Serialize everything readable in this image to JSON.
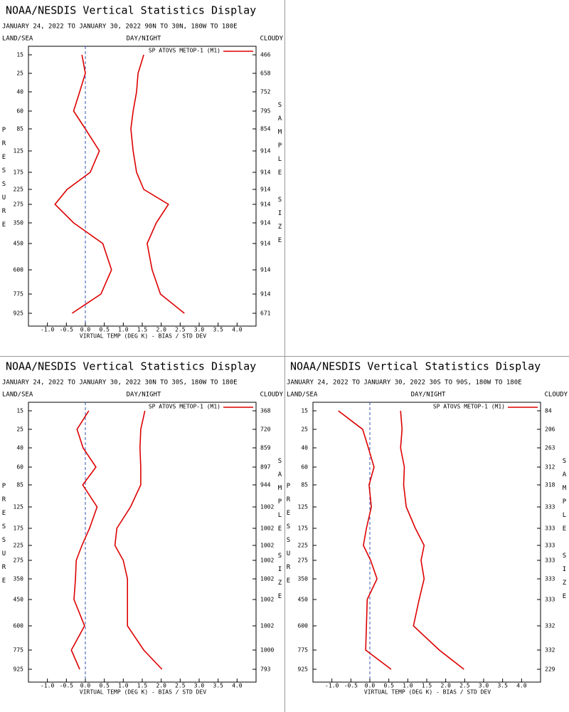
{
  "chart_data": [
    {
      "type": "line",
      "title": "NOAA/NESDIS Vertical Statistics Display",
      "subtitle": "JANUARY 24, 2022 TO JANUARY 30, 2022 90N TO 30N, 180W TO 180E",
      "left_header": "LAND/SEA",
      "center_header": "DAY/NIGHT",
      "right_header": "CLOUDY",
      "y_label": "PRESSURE",
      "y2_label": "SAMPLE SIZE",
      "x_label": "VIRTUAL TEMP (DEG K) - BIAS / STD DEV",
      "legend": "SP ATOVS METOP-1 (M1)",
      "categories": [
        "15",
        "25",
        "40",
        "60",
        "85",
        "125",
        "175",
        "225",
        "275",
        "350",
        "450",
        "600",
        "775",
        "925"
      ],
      "sample_size": [
        "466",
        "658",
        "752",
        "795",
        "854",
        "914",
        "914",
        "914",
        "914",
        "914",
        "914",
        "914",
        "914",
        "671"
      ],
      "series": [
        {
          "color": "#dd0000",
          "values": [
            -0.09,
            0.0,
            -0.15,
            -0.31,
            0.0,
            0.37,
            0.13,
            -0.48,
            -0.8,
            -0.31,
            0.46,
            0.69,
            0.41,
            -0.35
          ]
        },
        {
          "color": "#dd0000",
          "values": [
            1.54,
            1.39,
            1.35,
            1.26,
            1.2,
            1.26,
            1.35,
            1.54,
            2.19,
            1.87,
            1.63,
            1.76,
            1.98,
            2.61
          ]
        }
      ],
      "xlim": [
        -1.5,
        4.5
      ],
      "xticks": [
        {
          "value": -1,
          "label": "-1.0"
        },
        -0.5,
        {
          "value": 0,
          "label": "0.0"
        },
        0.5,
        {
          "value": 1,
          "label": "1.0"
        },
        1.5,
        {
          "value": 2,
          "label": "2.0"
        },
        2.5,
        {
          "value": 3,
          "label": "3.0"
        },
        3.5,
        {
          "value": 4,
          "label": "4.0"
        }
      ]
    },
    {
      "type": "line",
      "title": "NOAA/NESDIS Vertical Statistics Display",
      "subtitle": "JANUARY 24, 2022 TO JANUARY 30, 2022 30N TO 30S, 180W TO 180E",
      "left_header": "LAND/SEA",
      "center_header": "DAY/NIGHT",
      "right_header": "CLOUDY",
      "y_label": "PRESSURE",
      "y2_label": "SAMPLE SIZE",
      "x_label": "VIRTUAL TEMP (DEG K) - BIAS / STD DEV",
      "legend": "SP ATOVS METOP-1 (M1)",
      "categories": [
        "15",
        "25",
        "40",
        "60",
        "85",
        "125",
        "175",
        "225",
        "275",
        "350",
        "450",
        "600",
        "775",
        "925"
      ],
      "sample_size": [
        "368",
        "720",
        "859",
        "897",
        "944",
        "1002",
        "1002",
        "1002",
        "1002",
        "1002",
        "1002",
        "1002",
        "1000",
        "793"
      ],
      "series": [
        {
          "color": "#dd0000",
          "values": [
            0.09,
            -0.22,
            -0.06,
            0.28,
            -0.07,
            0.31,
            0.11,
            -0.09,
            -0.24,
            -0.26,
            -0.3,
            -0.02,
            -0.37,
            -0.15
          ]
        },
        {
          "color": "#dd0000",
          "values": [
            1.57,
            1.46,
            1.44,
            1.46,
            1.46,
            1.19,
            0.83,
            0.78,
            1.0,
            1.11,
            1.11,
            1.11,
            1.54,
            2.02
          ]
        }
      ],
      "xlim": [
        -1.5,
        4.5
      ],
      "xticks": [
        {
          "value": -1,
          "label": "-1.0"
        },
        -0.5,
        {
          "value": 0,
          "label": "0.0"
        },
        0.5,
        {
          "value": 1,
          "label": "1.0"
        },
        1.5,
        {
          "value": 2,
          "label": "2.0"
        },
        2.5,
        {
          "value": 3,
          "label": "3.0"
        },
        3.5,
        {
          "value": 4,
          "label": "4.0"
        }
      ]
    },
    {
      "type": "line",
      "title": "NOAA/NESDIS Vertical Statistics Display",
      "subtitle": "JANUARY 24, 2022 TO JANUARY 30, 2022 30S TO 90S, 180W TO 180E",
      "left_header": "LAND/SEA",
      "center_header": "DAY/NIGHT",
      "right_header": "CLOUDY",
      "y_label": "PRESSURE",
      "y2_label": "SAMPLE SIZE",
      "x_label": "VIRTUAL TEMP (DEG K) - BIAS / STD DEV",
      "legend": "SP ATOVS METOP-1 (M1)",
      "categories": [
        "15",
        "25",
        "40",
        "60",
        "85",
        "125",
        "175",
        "225",
        "275",
        "350",
        "450",
        "600",
        "775",
        "925"
      ],
      "sample_size": [
        "84",
        "206",
        "263",
        "312",
        "318",
        "333",
        "333",
        "333",
        "333",
        "333",
        "333",
        "332",
        "332",
        "229"
      ],
      "series": [
        {
          "color": "#dd0000",
          "values": [
            -0.83,
            -0.19,
            -0.04,
            0.11,
            -0.02,
            0.04,
            -0.09,
            -0.17,
            0.02,
            0.19,
            -0.07,
            -0.09,
            -0.11,
            0.56
          ]
        },
        {
          "color": "#dd0000",
          "values": [
            0.81,
            0.85,
            0.81,
            0.91,
            0.89,
            0.96,
            1.2,
            1.43,
            1.35,
            1.43,
            1.3,
            1.15,
            1.83,
            2.48
          ]
        }
      ],
      "xlim": [
        -1.5,
        4.5
      ],
      "xticks": [
        {
          "value": -1,
          "label": "-1.0"
        },
        -0.5,
        {
          "value": 0,
          "label": "0.0"
        },
        0.5,
        {
          "value": 1,
          "label": "1.0"
        },
        1.5,
        {
          "value": 2,
          "label": "2.0"
        },
        2.5,
        {
          "value": 3,
          "label": "3.0"
        },
        3.5,
        {
          "value": 4,
          "label": "4.0"
        }
      ]
    }
  ]
}
